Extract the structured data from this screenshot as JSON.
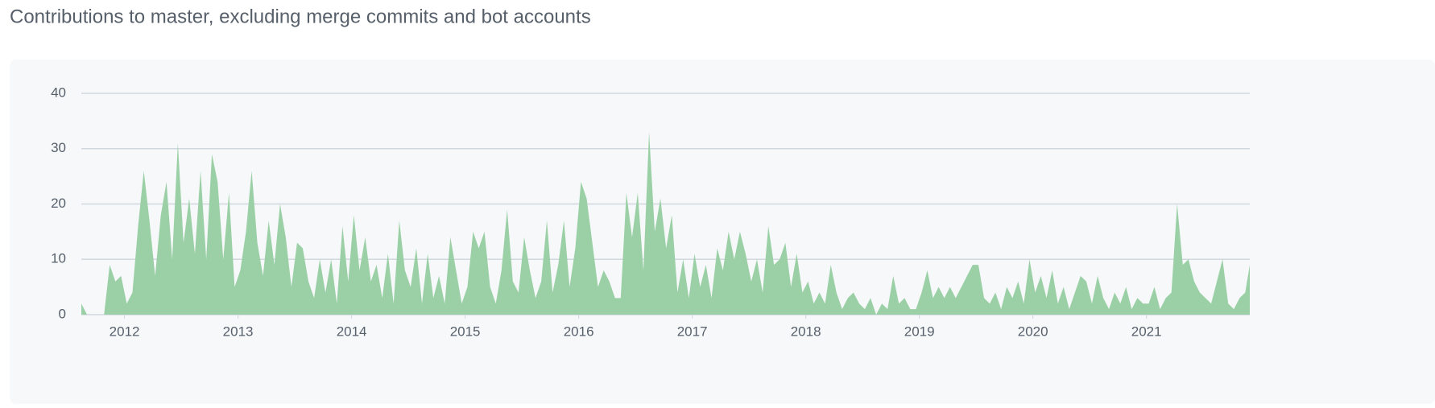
{
  "chart_data": {
    "type": "area",
    "title": "Contributions to master, excluding merge commits and bot accounts",
    "color": "#9bd0a6",
    "grid": true,
    "xlim": [
      2011.62,
      2021.91
    ],
    "ylim": [
      0,
      40
    ],
    "yticks": [
      0,
      10,
      20,
      30,
      40
    ],
    "xticks": [
      2012,
      2013,
      2014,
      2015,
      2016,
      2017,
      2018,
      2019,
      2020,
      2021
    ],
    "x": [
      2011.62,
      2011.67,
      2011.72,
      2011.77,
      2011.82,
      2011.87,
      2011.92,
      2011.97,
      2012.02,
      2012.07,
      2012.12,
      2012.17,
      2012.22,
      2012.27,
      2012.32,
      2012.37,
      2012.42,
      2012.47,
      2012.52,
      2012.57,
      2012.62,
      2012.67,
      2012.72,
      2012.77,
      2012.82,
      2012.87,
      2012.92,
      2012.97,
      2013.02,
      2013.07,
      2013.12,
      2013.17,
      2013.22,
      2013.27,
      2013.32,
      2013.37,
      2013.42,
      2013.47,
      2013.52,
      2013.57,
      2013.62,
      2013.67,
      2013.72,
      2013.77,
      2013.82,
      2013.87,
      2013.92,
      2013.97,
      2014.02,
      2014.07,
      2014.12,
      2014.17,
      2014.22,
      2014.27,
      2014.32,
      2014.37,
      2014.42,
      2014.47,
      2014.52,
      2014.57,
      2014.62,
      2014.67,
      2014.72,
      2014.77,
      2014.82,
      2014.87,
      2014.92,
      2014.97,
      2015.02,
      2015.07,
      2015.12,
      2015.17,
      2015.22,
      2015.27,
      2015.32,
      2015.37,
      2015.42,
      2015.47,
      2015.52,
      2015.57,
      2015.62,
      2015.67,
      2015.72,
      2015.77,
      2015.82,
      2015.87,
      2015.92,
      2015.97,
      2016.02,
      2016.07,
      2016.12,
      2016.17,
      2016.22,
      2016.27,
      2016.32,
      2016.37,
      2016.42,
      2016.47,
      2016.52,
      2016.57,
      2016.62,
      2016.67,
      2016.72,
      2016.77,
      2016.82,
      2016.87,
      2016.92,
      2016.97,
      2017.02,
      2017.07,
      2017.12,
      2017.17,
      2017.22,
      2017.27,
      2017.32,
      2017.37,
      2017.42,
      2017.47,
      2017.52,
      2017.57,
      2017.62,
      2017.67,
      2017.72,
      2017.77,
      2017.82,
      2017.87,
      2017.92,
      2017.97,
      2018.02,
      2018.07,
      2018.12,
      2018.17,
      2018.22,
      2018.27,
      2018.32,
      2018.37,
      2018.42,
      2018.47,
      2018.52,
      2018.57,
      2018.62,
      2018.67,
      2018.72,
      2018.77,
      2018.82,
      2018.87,
      2018.92,
      2018.97,
      2019.02,
      2019.07,
      2019.12,
      2019.17,
      2019.22,
      2019.27,
      2019.32,
      2019.37,
      2019.42,
      2019.47,
      2019.52,
      2019.57,
      2019.62,
      2019.67,
      2019.72,
      2019.77,
      2019.82,
      2019.87,
      2019.92,
      2019.97,
      2020.02,
      2020.07,
      2020.12,
      2020.17,
      2020.22,
      2020.27,
      2020.32,
      2020.37,
      2020.42,
      2020.47,
      2020.52,
      2020.57,
      2020.62,
      2020.67,
      2020.72,
      2020.77,
      2020.82,
      2020.87,
      2020.92,
      2020.97,
      2021.02,
      2021.07,
      2021.12,
      2021.17,
      2021.22,
      2021.27,
      2021.32,
      2021.37,
      2021.42,
      2021.47,
      2021.52,
      2021.57,
      2021.62,
      2021.67,
      2021.72,
      2021.77,
      2021.82,
      2021.87,
      2021.91
    ],
    "values": [
      2,
      0,
      0,
      0,
      0,
      9,
      6,
      7,
      2,
      4,
      16,
      26,
      17,
      7,
      18,
      24,
      10,
      31,
      13,
      21,
      11,
      26,
      10,
      29,
      24,
      10,
      22,
      5,
      8,
      15,
      26,
      13,
      7,
      17,
      9,
      20,
      14,
      5,
      13,
      12,
      6,
      3,
      10,
      4,
      10,
      2,
      16,
      6,
      18,
      8,
      14,
      6,
      9,
      3,
      11,
      2,
      17,
      8,
      5,
      12,
      2,
      11,
      3,
      7,
      2,
      14,
      8,
      2,
      5,
      15,
      12,
      15,
      5,
      2,
      8,
      19,
      6,
      4,
      14,
      8,
      3,
      6,
      17,
      4,
      9,
      17,
      5,
      12,
      24,
      21,
      13,
      5,
      8,
      6,
      3,
      3,
      22,
      14,
      22,
      8,
      33,
      15,
      21,
      12,
      18,
      4,
      10,
      3,
      11,
      5,
      9,
      3,
      12,
      8,
      15,
      10,
      15,
      11,
      6,
      10,
      4,
      16,
      9,
      10,
      13,
      5,
      11,
      4,
      6,
      2,
      4,
      2,
      9,
      4,
      1,
      3,
      4,
      2,
      1,
      3,
      0,
      2,
      1,
      7,
      2,
      3,
      1,
      1,
      4,
      8,
      3,
      5,
      3,
      5,
      3,
      5,
      7,
      9,
      9,
      3,
      2,
      4,
      1,
      5,
      3,
      6,
      2,
      10,
      4,
      7,
      3,
      8,
      2,
      5,
      1,
      4,
      7,
      6,
      2,
      7,
      3,
      1,
      4,
      2,
      5,
      1,
      3,
      2,
      2,
      5,
      1,
      3,
      4,
      20,
      9,
      10,
      6,
      4,
      3,
      2,
      6,
      10,
      2,
      1,
      3,
      4,
      9
    ]
  }
}
